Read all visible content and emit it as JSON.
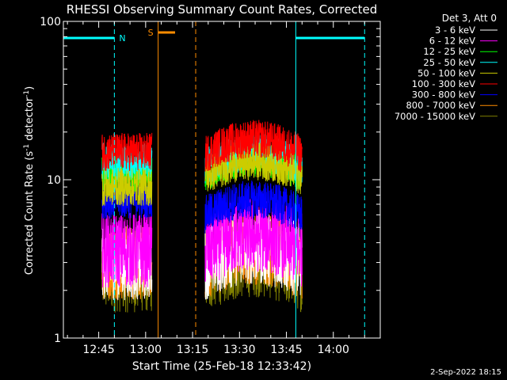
{
  "chart_data": {
    "type": "line",
    "title": "RHESSI Observing Summary Count Rates, Corrected",
    "xlabel": "Start Time (25-Feb-18 12:33:42)",
    "ylabel_parts": [
      "Corrected Count Rate (s",
      "-1",
      " detector",
      "-1",
      ")"
    ],
    "yscale": "log",
    "ylim": [
      1,
      100
    ],
    "xlim_minutes": [
      "12:33:42",
      "14:15:00"
    ],
    "x_ticks": [
      "12:45",
      "13:00",
      "13:15",
      "13:30",
      "13:45",
      "14:00"
    ],
    "y_ticks": [
      "1",
      "10",
      "100"
    ],
    "legend_title": "Det 3, Att 0",
    "legend_placement": "top-right",
    "date_stamp": "2-Sep-2022 18:15",
    "flag_labels": {
      "night": "N",
      "saa": "S"
    },
    "series": [
      {
        "name": "3 - 6 keV",
        "color": "#ffffff",
        "levels": [
          [
            12.83,
            3.0
          ],
          [
            13.29,
            3.0
          ]
        ]
      },
      {
        "name": "6 - 12 keV",
        "color": "#ff00ff",
        "levels": [
          [
            12.83,
            3.6
          ],
          [
            13.29,
            3.6
          ]
        ]
      },
      {
        "name": "12 - 25 keV",
        "color": "#00ff00",
        "levels": [
          [
            12.83,
            11.0
          ],
          [
            13.29,
            11.0
          ]
        ]
      },
      {
        "name": "25 - 50 keV",
        "color": "#00ffff",
        "levels": [
          [
            12.83,
            13.0
          ],
          [
            13.29,
            12.0
          ]
        ]
      },
      {
        "name": "50 - 100 keV",
        "color": "#cccc00",
        "levels": [
          [
            12.83,
            9.0
          ],
          [
            13.29,
            10.5
          ]
        ]
      },
      {
        "name": "100 - 300 keV",
        "color": "#ff0000",
        "levels": [
          [
            12.83,
            15.0
          ],
          [
            13.29,
            14.5
          ]
        ]
      },
      {
        "name": "300 - 800 keV",
        "color": "#0000ff",
        "levels": [
          [
            12.83,
            7.5
          ],
          [
            13.29,
            6.0
          ]
        ]
      },
      {
        "name": "800 - 7000 keV",
        "color": "#ff8c00",
        "levels": [
          [
            12.83,
            3.0
          ],
          [
            13.29,
            3.0
          ]
        ]
      },
      {
        "name": "7000 - 15000 keV",
        "color": "#808000",
        "levels": [
          [
            12.83,
            2.5
          ],
          [
            13.29,
            2.5
          ]
        ]
      }
    ],
    "segments_hhmm": [
      [
        "12:46",
        "13:02"
      ],
      [
        "13:19",
        "13:50"
      ]
    ],
    "night_intervals_hhmm": [
      [
        "12:33",
        "12:50"
      ],
      [
        "13:48",
        "14:10"
      ]
    ],
    "saa_interval_hhmm": [
      "13:04",
      "13:16"
    ],
    "grid": false
  }
}
